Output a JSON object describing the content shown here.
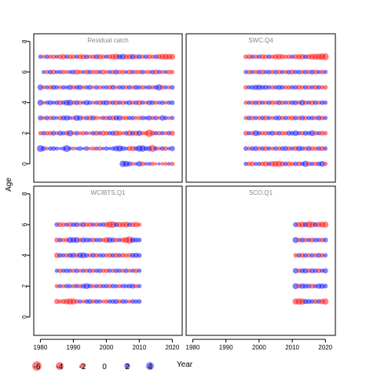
{
  "chart_data": {
    "type": "scatter",
    "subtype": "bubble-residual-lattice",
    "xlabel": "Year",
    "ylabel": "Age",
    "xlim": [
      1978,
      2023
    ],
    "ylim": [
      -1.2,
      8.5
    ],
    "xticks": [
      1980,
      1990,
      2000,
      2010,
      2020
    ],
    "yticks": [
      0,
      2,
      4,
      6,
      8
    ],
    "colors": {
      "positive": "#0000ff",
      "negative": "#ff0000",
      "opacity": 0.5
    },
    "legend": {
      "position": "bottom-left",
      "items": [
        {
          "label": "-6",
          "value": -6
        },
        {
          "label": "-4",
          "value": -4
        },
        {
          "label": "-2",
          "value": -2
        },
        {
          "label": "0",
          "value": 0
        },
        {
          "label": "2",
          "value": 2
        },
        {
          "label": "4",
          "value": 4
        }
      ]
    },
    "panels": [
      {
        "title": "Residual catch",
        "ages": [
          0,
          1,
          2,
          3,
          4,
          5,
          6,
          7
        ],
        "years": [
          1980,
          2020
        ],
        "residuals": [
          [
            0.0,
            0.0,
            0.0,
            0.0,
            0.0,
            0.0,
            0.0,
            0.0,
            0.0,
            0.0,
            0.0,
            0.0,
            0.0,
            0.0,
            0.0,
            0.0,
            0.0,
            0.0,
            0.0,
            0.0,
            0.0,
            0.0,
            0.0,
            0.0,
            0.0,
            2.6,
            2.2,
            1.4,
            -0.8,
            0.6,
            1.8,
            -1.2,
            0.6,
            0.8,
            -1.0,
            -0.4,
            0.4,
            -0.6,
            -0.8,
            0.6,
            -1.0
          ],
          [
            3.0,
            1.4,
            -0.6,
            1.0,
            1.2,
            0.8,
            0.4,
            1.0,
            3.0,
            0.8,
            -0.8,
            0.6,
            1.2,
            0.4,
            1.2,
            -0.6,
            -1.0,
            0.8,
            -1.2,
            0.6,
            1.0,
            0.6,
            1.0,
            1.8,
            2.4,
            1.4,
            0.8,
            -1.4,
            -1.6,
            1.2,
            2.4,
            2.6,
            1.2,
            1.6,
            -3.2,
            1.0,
            -0.8,
            1.2,
            -1.2,
            0.6,
            1.6
          ],
          [
            -1.0,
            1.2,
            -1.2,
            -1.2,
            1.4,
            -0.8,
            1.6,
            1.0,
            -1.4,
            2.4,
            -0.6,
            1.2,
            -0.8,
            -1.2,
            0.8,
            -0.6,
            1.2,
            -1.4,
            1.0,
            -1.6,
            -1.2,
            1.0,
            1.4,
            -1.8,
            -1.4,
            -0.8,
            1.2,
            -2.0,
            1.4,
            -1.6,
            1.8,
            -1.0,
            -1.2,
            -3.6,
            -1.4,
            1.0,
            -1.2,
            1.0,
            -0.8,
            1.2,
            -1.6
          ],
          [
            1.4,
            -0.8,
            1.2,
            -1.0,
            1.2,
            0.6,
            -1.2,
            1.4,
            1.6,
            1.0,
            -1.0,
            2.0,
            1.6,
            -0.8,
            1.2,
            -1.4,
            1.4,
            -1.0,
            -0.6,
            1.0,
            -1.2,
            1.2,
            -1.4,
            1.4,
            1.6,
            -1.0,
            -1.2,
            1.0,
            1.2,
            -0.8,
            -1.0,
            1.2,
            0.8,
            1.4,
            -1.0,
            1.2,
            -0.6,
            1.8,
            1.0,
            -0.8,
            1.0
          ],
          [
            2.2,
            -0.6,
            1.0,
            1.4,
            0.8,
            1.2,
            -1.6,
            1.0,
            2.0,
            2.2,
            -1.0,
            1.4,
            -1.2,
            0.8,
            1.6,
            1.2,
            -0.8,
            1.0,
            -1.4,
            1.2,
            1.6,
            -1.0,
            1.2,
            -1.4,
            1.0,
            -1.2,
            0.8,
            1.4,
            -1.0,
            1.2,
            -1.6,
            1.0,
            -0.8,
            1.4,
            1.2,
            -1.0,
            0.8,
            1.2,
            -0.8,
            1.0,
            1.2
          ],
          [
            2.0,
            -0.8,
            1.0,
            -1.2,
            1.4,
            1.0,
            -0.8,
            1.2,
            0.8,
            1.6,
            -1.0,
            1.2,
            1.6,
            -0.8,
            1.0,
            1.4,
            -0.6,
            1.2,
            -1.0,
            0.8,
            1.0,
            -1.2,
            1.4,
            -0.8,
            1.0,
            1.2,
            -1.0,
            1.2,
            -0.8,
            1.4,
            1.0,
            -1.2,
            0.8,
            1.2,
            -1.0,
            1.2,
            2.4,
            -1.0,
            1.0,
            -0.8,
            1.2
          ],
          [
            0.0,
            0.8,
            -1.0,
            1.2,
            -1.4,
            0.8,
            1.0,
            -1.2,
            -0.8,
            1.0,
            1.2,
            -1.6,
            -1.0,
            0.8,
            -1.4,
            1.2,
            -1.0,
            -1.2,
            1.0,
            -1.4,
            -0.8,
            1.0,
            -1.2,
            1.4,
            -1.0,
            -1.2,
            0.8,
            -1.4,
            1.0,
            -1.2,
            -1.0,
            1.2,
            -0.8,
            -1.0,
            1.2,
            -1.4,
            1.0,
            -1.0,
            0.8,
            -1.2,
            -1.0
          ],
          [
            1.0,
            -0.8,
            1.2,
            -1.0,
            -1.2,
            0.8,
            -1.4,
            -1.6,
            1.0,
            -1.4,
            -1.2,
            1.0,
            -1.4,
            -1.6,
            1.2,
            -1.0,
            -1.2,
            1.4,
            -1.6,
            -1.2,
            1.0,
            -1.4,
            -1.8,
            -2.2,
            1.6,
            2.0,
            -1.4,
            -1.6,
            1.8,
            -1.2,
            1.4,
            -1.0,
            1.2,
            -1.4,
            -1.0,
            1.2,
            -1.6,
            -2.0,
            -2.2,
            -2.0,
            -2.0
          ]
        ]
      },
      {
        "title": "SWC.Q4",
        "ages": [
          0,
          1,
          2,
          3,
          4,
          5,
          6,
          7
        ],
        "years": [
          1996,
          2020
        ],
        "residuals": [
          [
            1.0,
            -1.2,
            -1.4,
            0.8,
            1.0,
            -1.2,
            -1.6,
            1.0,
            -1.8,
            -2.0,
            -2.2,
            -1.6,
            1.2,
            -1.4,
            -1.0,
            1.2,
            -1.4,
            1.0,
            2.4,
            -1.2,
            1.0,
            -1.0,
            1.2,
            2.0,
            -1.0
          ],
          [
            1.2,
            -1.0,
            1.2,
            1.4,
            -1.0,
            1.2,
            -1.4,
            1.0,
            -0.8,
            1.2,
            -1.0,
            1.2,
            1.4,
            -1.2,
            1.0,
            -1.4,
            1.6,
            1.2,
            -1.0,
            1.4,
            -1.2,
            -1.0,
            1.2,
            -1.4,
            1.0
          ],
          [
            -1.4,
            1.0,
            -1.2,
            2.0,
            1.2,
            -1.0,
            -1.2,
            1.0,
            1.4,
            -1.0,
            1.2,
            -1.2,
            -1.0,
            1.4,
            1.2,
            1.8,
            1.0,
            -1.2,
            1.4,
            1.0,
            2.0,
            -1.2,
            1.0,
            -1.4,
            -1.0
          ],
          [
            -1.0,
            1.2,
            -1.2,
            1.0,
            -1.0,
            1.2,
            -1.4,
            1.0,
            -0.8,
            1.2,
            1.4,
            -1.0,
            1.2,
            -1.0,
            -1.4,
            1.2,
            -1.0,
            1.4,
            -1.2,
            1.0,
            1.2,
            -1.0,
            1.4,
            -1.2,
            1.0
          ],
          [
            -1.0,
            1.0,
            -1.2,
            1.2,
            -1.4,
            1.0,
            -1.0,
            1.2,
            -1.2,
            -1.0,
            1.4,
            -1.2,
            1.0,
            -1.0,
            1.2,
            1.4,
            -1.0,
            2.0,
            -1.2,
            1.0,
            -1.4,
            1.2,
            -1.0,
            1.2,
            1.0
          ],
          [
            -1.2,
            1.0,
            1.2,
            1.6,
            1.8,
            1.2,
            1.4,
            1.0,
            -1.2,
            1.0,
            1.4,
            1.2,
            -1.0,
            -1.2,
            1.0,
            1.2,
            -1.4,
            -1.0,
            1.2,
            -1.2,
            1.0,
            -1.4,
            1.2,
            -1.0,
            -1.2
          ],
          [
            1.0,
            -1.2,
            1.0,
            -1.0,
            1.2,
            -1.4,
            1.0,
            1.2,
            -1.0,
            1.2,
            -1.2,
            1.0,
            -1.0,
            1.2,
            -1.4,
            1.0,
            1.2,
            -1.0,
            1.2,
            -1.0,
            1.4,
            -1.2,
            1.0,
            -1.2,
            1.0
          ],
          [
            -1.2,
            -1.4,
            1.0,
            -1.2,
            1.0,
            -1.4,
            -1.2,
            1.2,
            -1.0,
            -1.6,
            -1.8,
            -1.4,
            -1.0,
            -1.2,
            1.0,
            -1.4,
            -1.6,
            -1.8,
            1.2,
            -1.6,
            -2.0,
            -2.2,
            -2.4,
            -2.6,
            -2.8
          ]
        ]
      },
      {
        "title": "WCIBTS.Q1",
        "ages": [
          1,
          2,
          3,
          4,
          5,
          6
        ],
        "years": [
          1985,
          2010
        ],
        "residuals": [
          [
            -1.6,
            -1.0,
            -1.4,
            -2.0,
            -2.4,
            -2.2,
            -1.2,
            1.0,
            -0.8,
            1.2,
            1.4,
            -1.0,
            1.2,
            1.0,
            -0.8,
            -1.2,
            1.0,
            1.2,
            1.4,
            -1.0,
            1.2,
            1.0,
            -0.8,
            1.2,
            1.0,
            1.2
          ],
          [
            -1.0,
            1.0,
            -0.8,
            1.2,
            1.0,
            -1.0,
            1.2,
            -1.0,
            1.4,
            2.0,
            1.2,
            -1.0,
            1.0,
            -1.2,
            1.0,
            1.2,
            -1.0,
            1.2,
            1.0,
            -1.0,
            1.2,
            1.0,
            1.2,
            1.4,
            -1.0,
            1.0
          ],
          [
            1.0,
            -1.2,
            1.0,
            1.2,
            1.0,
            -1.0,
            1.2,
            -0.8,
            1.0,
            -1.0,
            1.2,
            -1.0,
            1.0,
            1.2,
            -1.0,
            -1.2,
            1.0,
            -1.0,
            1.2,
            1.0,
            -1.0,
            1.2,
            -0.8,
            1.0,
            -1.2,
            1.0
          ],
          [
            -1.8,
            1.2,
            1.0,
            -1.2,
            1.4,
            1.6,
            -1.2,
            1.8,
            2.0,
            1.2,
            -1.0,
            1.4,
            -1.2,
            1.0,
            1.2,
            -1.0,
            -1.4,
            1.2,
            -1.6,
            1.0,
            -1.4,
            -1.0,
            -1.2,
            1.4,
            1.6,
            1.2
          ],
          [
            -1.4,
            1.2,
            -1.0,
            -1.2,
            2.2,
            1.8,
            2.0,
            -1.2,
            1.6,
            1.4,
            1.2,
            -1.4,
            1.0,
            1.2,
            -1.0,
            -2.0,
            1.8,
            1.4,
            -1.2,
            1.0,
            -1.4,
            -2.2,
            -3.4,
            1.6,
            1.4,
            1.2
          ],
          [
            1.2,
            -1.4,
            -1.2,
            1.0,
            -1.6,
            1.2,
            1.4,
            -1.0,
            1.6,
            -1.2,
            -1.4,
            1.0,
            -1.2,
            1.0,
            1.2,
            -1.6,
            -2.4,
            -2.6,
            1.4,
            -1.8,
            -1.6,
            -2.0,
            1.2,
            -1.4,
            -1.8,
            -1.0
          ]
        ]
      },
      {
        "title": "SCO.Q1",
        "ages": [
          1,
          2,
          3,
          4,
          5,
          6
        ],
        "years": [
          2011,
          2020
        ],
        "residuals": [
          [
            -2.2,
            -2.6,
            -2.4,
            1.6,
            1.4,
            1.2,
            -1.4,
            1.2,
            -1.8,
            -2.4
          ],
          [
            2.2,
            -1.2,
            1.8,
            1.4,
            1.2,
            -1.4,
            1.0,
            1.6,
            1.8,
            1.2
          ],
          [
            1.8,
            -1.2,
            1.4,
            1.6,
            -1.2,
            1.4,
            1.2,
            -1.4,
            1.0,
            1.6
          ],
          [
            -1.0,
            1.2,
            -1.4,
            1.2,
            -1.0,
            1.2,
            -1.0,
            1.4,
            -1.2,
            1.0
          ],
          [
            2.2,
            -1.2,
            1.4,
            -1.2,
            1.0,
            -1.4,
            1.2,
            1.0,
            -1.2,
            1.4
          ],
          [
            1.4,
            -1.8,
            -2.0,
            1.6,
            -2.6,
            -2.2,
            1.4,
            -1.8,
            -2.0,
            -2.2
          ]
        ]
      }
    ]
  }
}
